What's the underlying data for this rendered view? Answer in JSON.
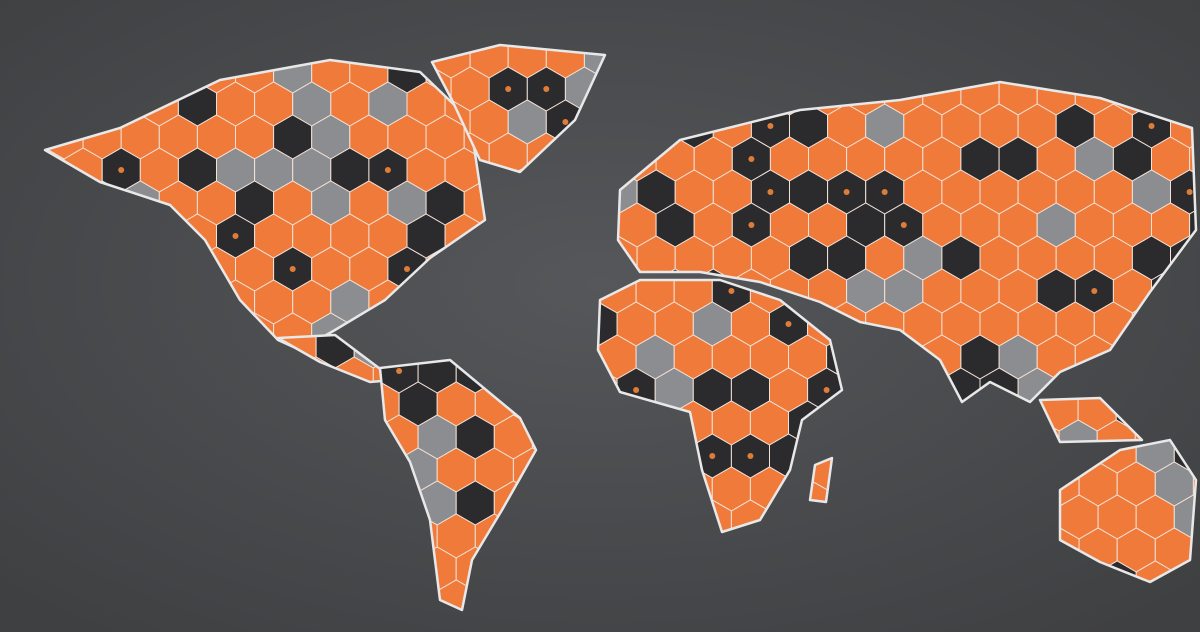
{
  "map": {
    "style": "stylized hexagonal world map",
    "colors": {
      "background": "#4a4b4d",
      "orange": "#f07a3a",
      "dark": "#2b2b2e",
      "gray": "#8c8d90",
      "outline": "#e8e8e8",
      "glow": "#ff8c3a"
    },
    "regions": [
      "north-america",
      "greenland",
      "central-america",
      "south-america",
      "eurasia",
      "africa",
      "madagascar",
      "southeast-asia",
      "australia"
    ]
  }
}
